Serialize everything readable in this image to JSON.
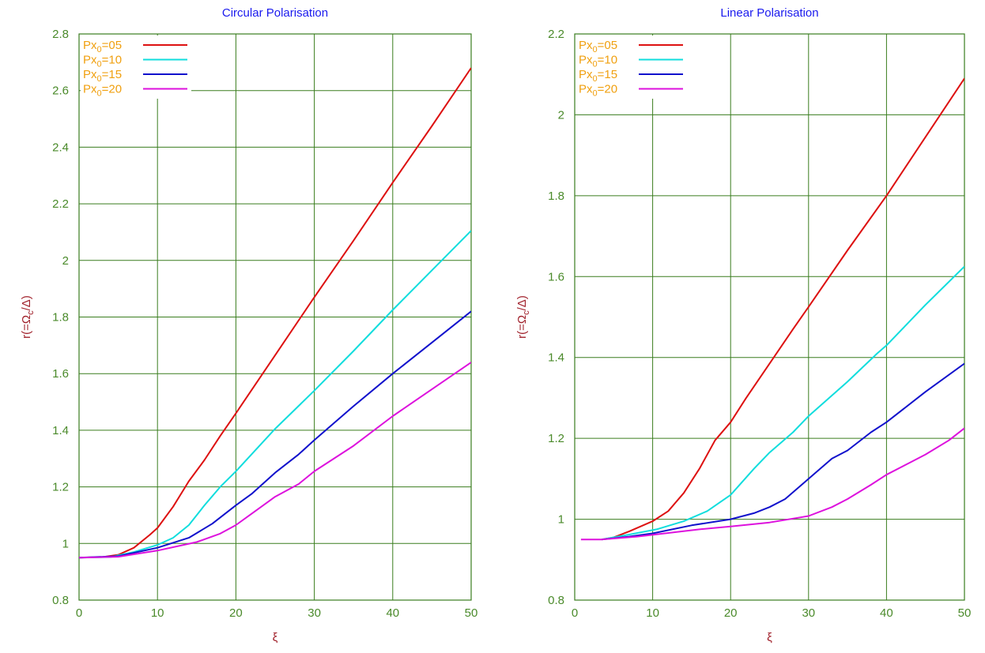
{
  "chart_data": [
    {
      "type": "line",
      "title": "Circular Polarisation",
      "xlabel": "ξ",
      "ylabel": "r(=Ω",
      "ylabel_sub": "c",
      "ylabel_tail": "/Δ)",
      "xlim": [
        0,
        50
      ],
      "ylim": [
        0.8,
        2.8
      ],
      "xticks": [
        "0",
        "10",
        "20",
        "30",
        "40",
        "50"
      ],
      "yticks": [
        "0.8",
        "1",
        "1.2",
        "1.4",
        "1.6",
        "1.8",
        "2",
        "2.2",
        "2.4",
        "2.6",
        "2.8"
      ],
      "grid": true,
      "legend_position": "top-left",
      "series": [
        {
          "name": "Px",
          "sub": "0",
          "suffix": "=05",
          "color": "#dd1111",
          "points": [
            [
              0,
              0.95
            ],
            [
              3,
              0.952
            ],
            [
              5,
              0.96
            ],
            [
              7,
              0.985
            ],
            [
              9,
              1.03
            ],
            [
              10,
              1.055
            ],
            [
              12,
              1.13
            ],
            [
              14,
              1.22
            ],
            [
              16,
              1.295
            ],
            [
              18,
              1.38
            ],
            [
              20,
              1.46
            ],
            [
              25,
              1.665
            ],
            [
              30,
              1.87
            ],
            [
              35,
              2.07
            ],
            [
              40,
              2.275
            ],
            [
              45,
              2.475
            ],
            [
              50,
              2.68
            ]
          ]
        },
        {
          "name": "Px",
          "sub": "0",
          "suffix": "=10",
          "color": "#11dddd",
          "points": [
            [
              0,
              0.95
            ],
            [
              4,
              0.952
            ],
            [
              7,
              0.97
            ],
            [
              10,
              0.995
            ],
            [
              12,
              1.02
            ],
            [
              14,
              1.065
            ],
            [
              16,
              1.135
            ],
            [
              18,
              1.2
            ],
            [
              20,
              1.255
            ],
            [
              25,
              1.405
            ],
            [
              30,
              1.54
            ],
            [
              35,
              1.68
            ],
            [
              40,
              1.825
            ],
            [
              45,
              1.965
            ],
            [
              50,
              2.105
            ]
          ]
        },
        {
          "name": "Px",
          "sub": "0",
          "suffix": "=15",
          "color": "#1111cc",
          "points": [
            [
              0,
              0.95
            ],
            [
              5,
              0.955
            ],
            [
              10,
              0.985
            ],
            [
              14,
              1.02
            ],
            [
              17,
              1.07
            ],
            [
              20,
              1.135
            ],
            [
              22,
              1.175
            ],
            [
              25,
              1.25
            ],
            [
              28,
              1.315
            ],
            [
              30,
              1.365
            ],
            [
              35,
              1.485
            ],
            [
              40,
              1.6
            ],
            [
              45,
              1.71
            ],
            [
              50,
              1.82
            ]
          ]
        },
        {
          "name": "Px",
          "sub": "0",
          "suffix": "=20",
          "color": "#dd11dd",
          "points": [
            [
              0,
              0.95
            ],
            [
              5,
              0.953
            ],
            [
              10,
              0.975
            ],
            [
              15,
              1.005
            ],
            [
              18,
              1.035
            ],
            [
              20,
              1.065
            ],
            [
              22,
              1.105
            ],
            [
              25,
              1.165
            ],
            [
              28,
              1.21
            ],
            [
              30,
              1.255
            ],
            [
              35,
              1.345
            ],
            [
              40,
              1.45
            ],
            [
              45,
              1.545
            ],
            [
              50,
              1.64
            ]
          ]
        }
      ]
    },
    {
      "type": "line",
      "title": "Linear Polarisation",
      "xlabel": "ξ",
      "ylabel": "r(=Ω",
      "ylabel_sub": "c",
      "ylabel_tail": "/Δ)",
      "xlim": [
        0,
        50
      ],
      "ylim": [
        0.8,
        2.2
      ],
      "xticks": [
        "0",
        "10",
        "20",
        "30",
        "40",
        "50"
      ],
      "yticks": [
        "0.8",
        "1",
        "1.2",
        "1.4",
        "1.6",
        "1.8",
        "2",
        "2.2"
      ],
      "grid": true,
      "legend_position": "top-left",
      "series": [
        {
          "name": "Px",
          "sub": "0",
          "suffix": "=05",
          "color": "#dd1111",
          "points": [
            [
              3.5,
              0.95
            ],
            [
              5,
              0.955
            ],
            [
              7,
              0.97
            ],
            [
              10,
              0.995
            ],
            [
              12,
              1.02
            ],
            [
              14,
              1.065
            ],
            [
              16,
              1.125
            ],
            [
              18,
              1.195
            ],
            [
              20,
              1.24
            ],
            [
              22,
              1.3
            ],
            [
              25,
              1.385
            ],
            [
              28,
              1.47
            ],
            [
              30,
              1.525
            ],
            [
              35,
              1.665
            ],
            [
              40,
              1.8
            ],
            [
              45,
              1.945
            ],
            [
              50,
              2.09
            ]
          ]
        },
        {
          "name": "Px",
          "sub": "0",
          "suffix": "=10",
          "color": "#11dddd",
          "points": [
            [
              3.5,
              0.95
            ],
            [
              7,
              0.962
            ],
            [
              10.5,
              0.975
            ],
            [
              14,
              0.995
            ],
            [
              17,
              1.02
            ],
            [
              20,
              1.06
            ],
            [
              23,
              1.125
            ],
            [
              25,
              1.165
            ],
            [
              28,
              1.215
            ],
            [
              30,
              1.255
            ],
            [
              35,
              1.34
            ],
            [
              38.8,
              1.41
            ],
            [
              40,
              1.43
            ],
            [
              45,
              1.53
            ],
            [
              50,
              1.625
            ]
          ]
        },
        {
          "name": "Px",
          "sub": "0",
          "suffix": "=15",
          "color": "#1111cc",
          "points": [
            [
              3.5,
              0.95
            ],
            [
              7,
              0.957
            ],
            [
              10,
              0.965
            ],
            [
              15,
              0.985
            ],
            [
              20,
              1.0
            ],
            [
              23,
              1.015
            ],
            [
              25,
              1.03
            ],
            [
              27,
              1.05
            ],
            [
              30,
              1.1
            ],
            [
              33,
              1.15
            ],
            [
              35,
              1.17
            ],
            [
              38,
              1.215
            ],
            [
              40,
              1.24
            ],
            [
              45,
              1.315
            ],
            [
              50,
              1.385
            ]
          ]
        },
        {
          "name": "Px",
          "sub": "0",
          "suffix": "=20",
          "color": "#dd11dd",
          "points": [
            [
              0.8,
              0.95
            ],
            [
              3.5,
              0.95
            ],
            [
              8,
              0.957
            ],
            [
              12,
              0.966
            ],
            [
              16,
              0.975
            ],
            [
              20,
              0.982
            ],
            [
              25,
              0.992
            ],
            [
              30,
              1.008
            ],
            [
              33,
              1.03
            ],
            [
              35,
              1.05
            ],
            [
              38,
              1.085
            ],
            [
              40,
              1.11
            ],
            [
              43,
              1.14
            ],
            [
              45,
              1.16
            ],
            [
              48,
              1.195
            ],
            [
              50,
              1.225
            ]
          ]
        }
      ]
    }
  ]
}
